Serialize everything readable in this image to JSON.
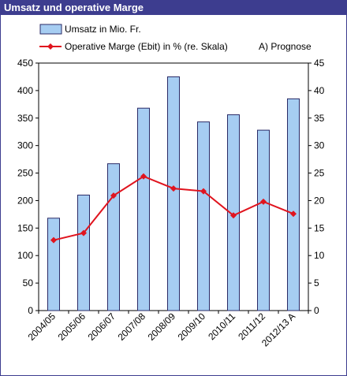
{
  "chart_data": {
    "type": "bar",
    "title": "Umsatz und operative Marge",
    "categories": [
      "2004/05",
      "2005/06",
      "2006/07",
      "2007/08",
      "2008/09",
      "2009/10",
      "2010/11",
      "2011/12",
      "2012/13 A"
    ],
    "series": [
      {
        "name": "Umsatz in Mio. Fr.",
        "type": "bar",
        "axis": "left",
        "values": [
          168,
          210,
          267,
          368,
          425,
          343,
          356,
          328,
          385
        ]
      },
      {
        "name": "Operative Marge (Ebit) in % (re. Skala)",
        "type": "line",
        "axis": "right",
        "values": [
          12.8,
          14.1,
          20.9,
          24.4,
          22.2,
          21.7,
          17.3,
          19.8,
          17.6
        ]
      }
    ],
    "note": "A) Prognose",
    "ylim_left": [
      0,
      450
    ],
    "ylim_right": [
      0,
      45
    ],
    "yticks_left": [
      "0",
      "50",
      "100",
      "150",
      "200",
      "250",
      "300",
      "350",
      "400",
      "450"
    ],
    "yticks_right": [
      "0",
      "5",
      "10",
      "15",
      "20",
      "25",
      "30",
      "35",
      "40",
      "45"
    ],
    "grid": false,
    "legend_position": "top"
  },
  "colors": {
    "title_bar": "#3d3d8f",
    "bar_fill": "#a6cdf2",
    "bar_stroke": "#2a2a66",
    "line": "#e0141e",
    "marker": "#e0141e"
  }
}
